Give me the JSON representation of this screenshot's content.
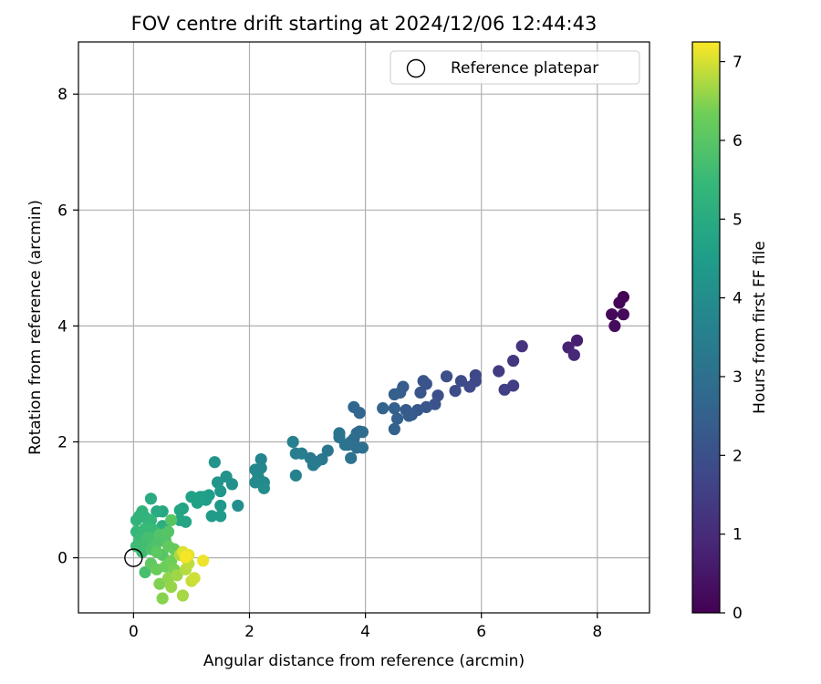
{
  "chart_data": {
    "type": "scatter",
    "title": "FOV centre drift starting at 2024/12/06 12:44:43",
    "xlabel": "Angular distance from reference (arcmin)",
    "ylabel": "Rotation from reference (arcmin)",
    "xlim": [
      -0.95,
      8.9
    ],
    "ylim": [
      -0.95,
      8.9
    ],
    "xticks": [
      0,
      2,
      4,
      6,
      8
    ],
    "yticks": [
      0,
      2,
      4,
      6,
      8
    ],
    "xtick_labels": [
      "0",
      "2",
      "4",
      "6",
      "8"
    ],
    "ytick_labels": [
      "0",
      "2",
      "4",
      "6",
      "8"
    ],
    "grid": true,
    "legend": {
      "position": "top-right",
      "entries": [
        {
          "label": "Reference platepar",
          "marker": "open-circle"
        }
      ]
    },
    "reference_point": {
      "x": 0,
      "y": 0
    },
    "colorbar": {
      "label": "Hours from first FF file",
      "range": [
        0,
        7.25
      ],
      "ticks": [
        0,
        1,
        2,
        3,
        4,
        5,
        6,
        7
      ],
      "tick_labels": [
        "0",
        "1",
        "2",
        "3",
        "4",
        "5",
        "6",
        "7"
      ],
      "colormap": "viridis"
    },
    "points": [
      {
        "x": 8.45,
        "y": 4.5,
        "t": 0.05
      },
      {
        "x": 8.38,
        "y": 4.4,
        "t": 0.1
      },
      {
        "x": 8.25,
        "y": 4.2,
        "t": 0.15
      },
      {
        "x": 8.45,
        "y": 4.2,
        "t": 0.2
      },
      {
        "x": 8.3,
        "y": 4.0,
        "t": 0.25
      },
      {
        "x": 7.65,
        "y": 3.75,
        "t": 0.7
      },
      {
        "x": 7.5,
        "y": 3.63,
        "t": 0.8
      },
      {
        "x": 7.6,
        "y": 3.5,
        "t": 0.9
      },
      {
        "x": 6.7,
        "y": 3.65,
        "t": 1.2
      },
      {
        "x": 6.55,
        "y": 3.4,
        "t": 1.3
      },
      {
        "x": 6.3,
        "y": 3.22,
        "t": 1.4
      },
      {
        "x": 6.55,
        "y": 2.97,
        "t": 1.5
      },
      {
        "x": 6.4,
        "y": 2.9,
        "t": 1.55
      },
      {
        "x": 5.9,
        "y": 3.15,
        "t": 1.7
      },
      {
        "x": 5.9,
        "y": 3.05,
        "t": 1.75
      },
      {
        "x": 5.8,
        "y": 2.95,
        "t": 1.8
      },
      {
        "x": 5.65,
        "y": 3.05,
        "t": 1.85
      },
      {
        "x": 5.55,
        "y": 2.88,
        "t": 1.9
      },
      {
        "x": 5.4,
        "y": 3.13,
        "t": 1.95
      },
      {
        "x": 5.25,
        "y": 2.8,
        "t": 2.0
      },
      {
        "x": 5.2,
        "y": 2.65,
        "t": 2.05
      },
      {
        "x": 5.0,
        "y": 3.05,
        "t": 2.1
      },
      {
        "x": 5.05,
        "y": 3.0,
        "t": 2.1
      },
      {
        "x": 4.95,
        "y": 2.85,
        "t": 2.15
      },
      {
        "x": 5.05,
        "y": 2.6,
        "t": 2.2
      },
      {
        "x": 4.9,
        "y": 2.55,
        "t": 2.25
      },
      {
        "x": 4.8,
        "y": 2.47,
        "t": 2.3
      },
      {
        "x": 4.7,
        "y": 2.55,
        "t": 2.3
      },
      {
        "x": 4.75,
        "y": 2.45,
        "t": 2.35
      },
      {
        "x": 4.65,
        "y": 2.95,
        "t": 2.4
      },
      {
        "x": 4.6,
        "y": 2.85,
        "t": 2.4
      },
      {
        "x": 4.5,
        "y": 2.82,
        "t": 2.45
      },
      {
        "x": 4.5,
        "y": 2.58,
        "t": 2.5
      },
      {
        "x": 4.55,
        "y": 2.4,
        "t": 2.5
      },
      {
        "x": 4.5,
        "y": 2.22,
        "t": 2.55
      },
      {
        "x": 4.3,
        "y": 2.58,
        "t": 2.6
      },
      {
        "x": 3.9,
        "y": 2.5,
        "t": 2.65
      },
      {
        "x": 3.8,
        "y": 2.6,
        "t": 2.7
      },
      {
        "x": 3.9,
        "y": 2.18,
        "t": 2.75
      },
      {
        "x": 3.85,
        "y": 2.15,
        "t": 2.8
      },
      {
        "x": 3.8,
        "y": 2.05,
        "t": 2.85
      },
      {
        "x": 3.95,
        "y": 2.17,
        "t": 2.9
      },
      {
        "x": 3.75,
        "y": 2.0,
        "t": 2.9
      },
      {
        "x": 3.7,
        "y": 1.95,
        "t": 2.95
      },
      {
        "x": 3.85,
        "y": 1.9,
        "t": 3.0
      },
      {
        "x": 3.95,
        "y": 1.9,
        "t": 3.0
      },
      {
        "x": 3.75,
        "y": 1.72,
        "t": 3.05
      },
      {
        "x": 3.55,
        "y": 2.15,
        "t": 3.1
      },
      {
        "x": 3.55,
        "y": 2.08,
        "t": 3.1
      },
      {
        "x": 3.65,
        "y": 1.95,
        "t": 3.15
      },
      {
        "x": 3.35,
        "y": 1.85,
        "t": 3.2
      },
      {
        "x": 3.25,
        "y": 1.7,
        "t": 3.25
      },
      {
        "x": 3.15,
        "y": 1.65,
        "t": 3.3
      },
      {
        "x": 3.05,
        "y": 1.72,
        "t": 3.35
      },
      {
        "x": 3.1,
        "y": 1.6,
        "t": 3.4
      },
      {
        "x": 2.9,
        "y": 1.8,
        "t": 3.45
      },
      {
        "x": 2.8,
        "y": 1.8,
        "t": 3.5
      },
      {
        "x": 2.75,
        "y": 2.0,
        "t": 3.55
      },
      {
        "x": 2.8,
        "y": 1.42,
        "t": 3.6
      },
      {
        "x": 2.2,
        "y": 1.7,
        "t": 3.7
      },
      {
        "x": 2.2,
        "y": 1.55,
        "t": 3.75
      },
      {
        "x": 2.1,
        "y": 1.52,
        "t": 3.8
      },
      {
        "x": 2.15,
        "y": 1.4,
        "t": 3.85
      },
      {
        "x": 2.1,
        "y": 1.3,
        "t": 3.9
      },
      {
        "x": 2.25,
        "y": 1.3,
        "t": 3.9
      },
      {
        "x": 2.25,
        "y": 1.2,
        "t": 3.95
      },
      {
        "x": 1.8,
        "y": 0.9,
        "t": 4.05
      },
      {
        "x": 1.7,
        "y": 1.27,
        "t": 4.1
      },
      {
        "x": 1.6,
        "y": 1.4,
        "t": 4.15
      },
      {
        "x": 1.45,
        "y": 1.3,
        "t": 4.2
      },
      {
        "x": 1.4,
        "y": 1.65,
        "t": 4.25
      },
      {
        "x": 1.5,
        "y": 1.15,
        "t": 4.3
      },
      {
        "x": 1.5,
        "y": 0.9,
        "t": 4.35
      },
      {
        "x": 1.5,
        "y": 0.72,
        "t": 4.4
      },
      {
        "x": 1.35,
        "y": 0.72,
        "t": 4.45
      },
      {
        "x": 1.3,
        "y": 1.08,
        "t": 4.5
      },
      {
        "x": 1.25,
        "y": 1.0,
        "t": 4.55
      },
      {
        "x": 1.2,
        "y": 1.05,
        "t": 4.55
      },
      {
        "x": 1.1,
        "y": 0.95,
        "t": 4.6
      },
      {
        "x": 1.15,
        "y": 1.05,
        "t": 4.6
      },
      {
        "x": 1.0,
        "y": 1.05,
        "t": 4.65
      },
      {
        "x": 0.85,
        "y": 0.85,
        "t": 4.7
      },
      {
        "x": 0.8,
        "y": 0.82,
        "t": 4.75
      },
      {
        "x": 0.8,
        "y": 0.65,
        "t": 4.8
      },
      {
        "x": 0.9,
        "y": 0.62,
        "t": 4.8
      },
      {
        "x": 0.5,
        "y": 0.8,
        "t": 4.9
      },
      {
        "x": 0.4,
        "y": 0.8,
        "t": 4.95
      },
      {
        "x": 0.3,
        "y": 1.02,
        "t": 5.0
      },
      {
        "x": 0.5,
        "y": 0.55,
        "t": 5.05
      },
      {
        "x": 0.55,
        "y": 0.5,
        "t": 5.05
      },
      {
        "x": 0.45,
        "y": 0.45,
        "t": 5.1
      },
      {
        "x": 0.55,
        "y": 0.4,
        "t": 5.1
      },
      {
        "x": 0.1,
        "y": 0.72,
        "t": 5.2
      },
      {
        "x": 0.15,
        "y": 0.8,
        "t": 5.25
      },
      {
        "x": 0.05,
        "y": 0.65,
        "t": 5.3
      },
      {
        "x": 0.2,
        "y": 0.7,
        "t": 5.3
      },
      {
        "x": 0.3,
        "y": 0.65,
        "t": 5.35
      },
      {
        "x": 0.25,
        "y": 0.55,
        "t": 5.4
      },
      {
        "x": 0.05,
        "y": 0.45,
        "t": 5.45
      },
      {
        "x": 0.15,
        "y": 0.4,
        "t": 5.45
      },
      {
        "x": 0.2,
        "y": 0.5,
        "t": 5.5
      },
      {
        "x": 0.35,
        "y": 0.48,
        "t": 5.5
      },
      {
        "x": 0.1,
        "y": 0.3,
        "t": 5.55
      },
      {
        "x": 0.05,
        "y": 0.2,
        "t": 5.6
      },
      {
        "x": 0.15,
        "y": 0.1,
        "t": 5.6
      },
      {
        "x": 0.2,
        "y": 0.25,
        "t": 5.65
      },
      {
        "x": 0.25,
        "y": 0.35,
        "t": 5.7
      },
      {
        "x": 0.35,
        "y": 0.3,
        "t": 5.7
      },
      {
        "x": 0.2,
        "y": -0.25,
        "t": 5.75
      },
      {
        "x": 0.3,
        "y": 0.15,
        "t": 5.8
      },
      {
        "x": 0.4,
        "y": 0.25,
        "t": 5.85
      },
      {
        "x": 0.45,
        "y": 0.4,
        "t": 5.9
      },
      {
        "x": 0.55,
        "y": 0.3,
        "t": 5.9
      },
      {
        "x": 0.6,
        "y": 0.45,
        "t": 5.95
      },
      {
        "x": 0.65,
        "y": 0.65,
        "t": 6.0
      },
      {
        "x": 0.5,
        "y": 0.05,
        "t": 6.0
      },
      {
        "x": 0.4,
        "y": 0.1,
        "t": 6.05
      },
      {
        "x": 0.3,
        "y": -0.1,
        "t": 6.1
      },
      {
        "x": 0.6,
        "y": 0.2,
        "t": 6.15
      },
      {
        "x": 0.7,
        "y": 0.15,
        "t": 6.2
      },
      {
        "x": 0.4,
        "y": -0.2,
        "t": 6.25
      },
      {
        "x": 0.55,
        "y": -0.15,
        "t": 6.3
      },
      {
        "x": 0.65,
        "y": -0.05,
        "t": 6.35
      },
      {
        "x": 0.7,
        "y": -0.2,
        "t": 6.4
      },
      {
        "x": 0.45,
        "y": -0.45,
        "t": 6.45
      },
      {
        "x": 0.5,
        "y": -0.7,
        "t": 6.5
      },
      {
        "x": 0.6,
        "y": -0.35,
        "t": 6.55
      },
      {
        "x": 0.65,
        "y": -0.5,
        "t": 6.6
      },
      {
        "x": 0.75,
        "y": -0.3,
        "t": 6.65
      },
      {
        "x": 0.85,
        "y": -0.65,
        "t": 6.7
      },
      {
        "x": 0.8,
        "y": 0.05,
        "t": 6.75
      },
      {
        "x": 0.9,
        "y": -0.2,
        "t": 6.8
      },
      {
        "x": 0.95,
        "y": -0.1,
        "t": 6.85
      },
      {
        "x": 1.0,
        "y": -0.4,
        "t": 6.9
      },
      {
        "x": 1.05,
        "y": -0.35,
        "t": 6.95
      },
      {
        "x": 0.9,
        "y": 0.0,
        "t": 7.0
      },
      {
        "x": 0.85,
        "y": 0.1,
        "t": 7.05
      },
      {
        "x": 0.95,
        "y": 0.05,
        "t": 7.1
      },
      {
        "x": 1.2,
        "y": -0.05,
        "t": 7.15
      },
      {
        "x": 0.9,
        "y": 0.02,
        "t": 7.2
      }
    ]
  }
}
